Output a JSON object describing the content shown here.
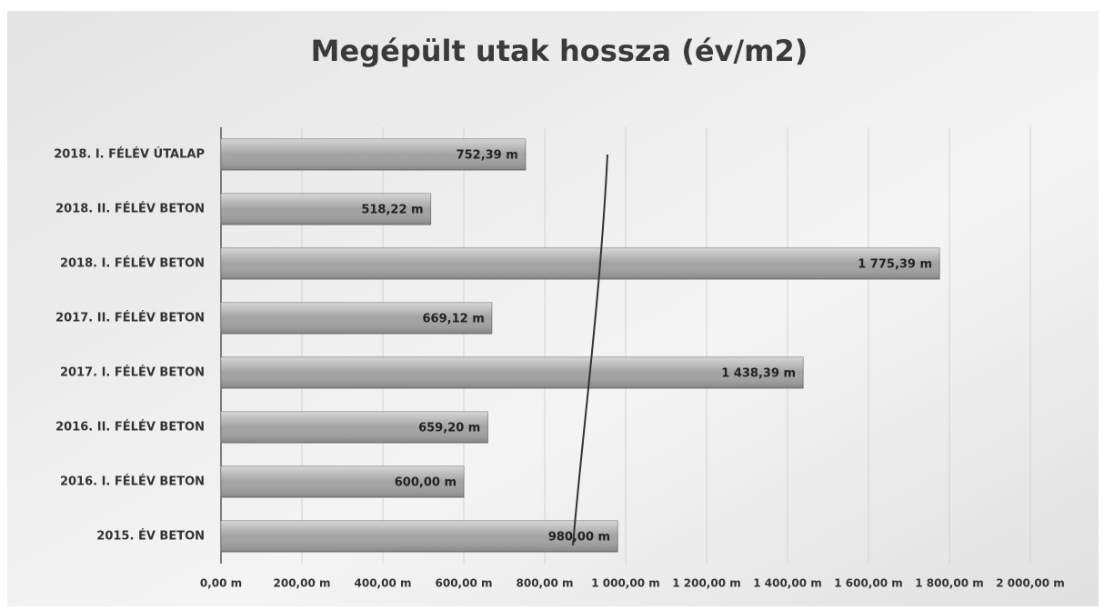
{
  "chart_data": {
    "type": "bar",
    "orientation": "horizontal",
    "title": "Megépült utak hossza (év/m2)",
    "categories": [
      "2018. I. FÉLÉV ÚTALAP",
      "2018. II. FÉLÉV BETON",
      "2018. I. FÉLÉV BETON",
      "2017. II. FÉLÉV BETON",
      "2017. I. FÉLÉV BETON",
      "2016. II. FÉLÉV BETON",
      "2016. I. FÉLÉV BETON",
      "2015. ÉV BETON"
    ],
    "values": [
      752.39,
      518.22,
      1775.39,
      669.12,
      1438.39,
      659.2,
      600,
      980
    ],
    "value_labels": [
      "752,39 m",
      "518,22 m",
      "1 775,39 m",
      "669,12 m",
      "1 438,39 m",
      "659,20 m",
      "600,00 m",
      "980,00 m"
    ],
    "color": "#a2a2a2",
    "xlim": [
      0,
      2000
    ],
    "xticks": [
      {
        "value": 0,
        "label": "0,00 m"
      },
      {
        "value": 200,
        "label": "200,00 m"
      },
      {
        "value": 400,
        "label": "400,00 m"
      },
      {
        "value": 600,
        "label": "600,00 m"
      },
      {
        "value": 800,
        "label": "800,00 m"
      },
      {
        "value": 1000,
        "label": "1 000,00 m"
      },
      {
        "value": 1200,
        "label": "1 200,00 m"
      },
      {
        "value": 1400,
        "label": "1 400,00 m"
      },
      {
        "value": 1600,
        "label": "1 600,00 m"
      },
      {
        "value": 1800,
        "label": "1 800,00 m"
      },
      {
        "value": 2000,
        "label": "2 000,00 m"
      }
    ],
    "grid": true
  }
}
